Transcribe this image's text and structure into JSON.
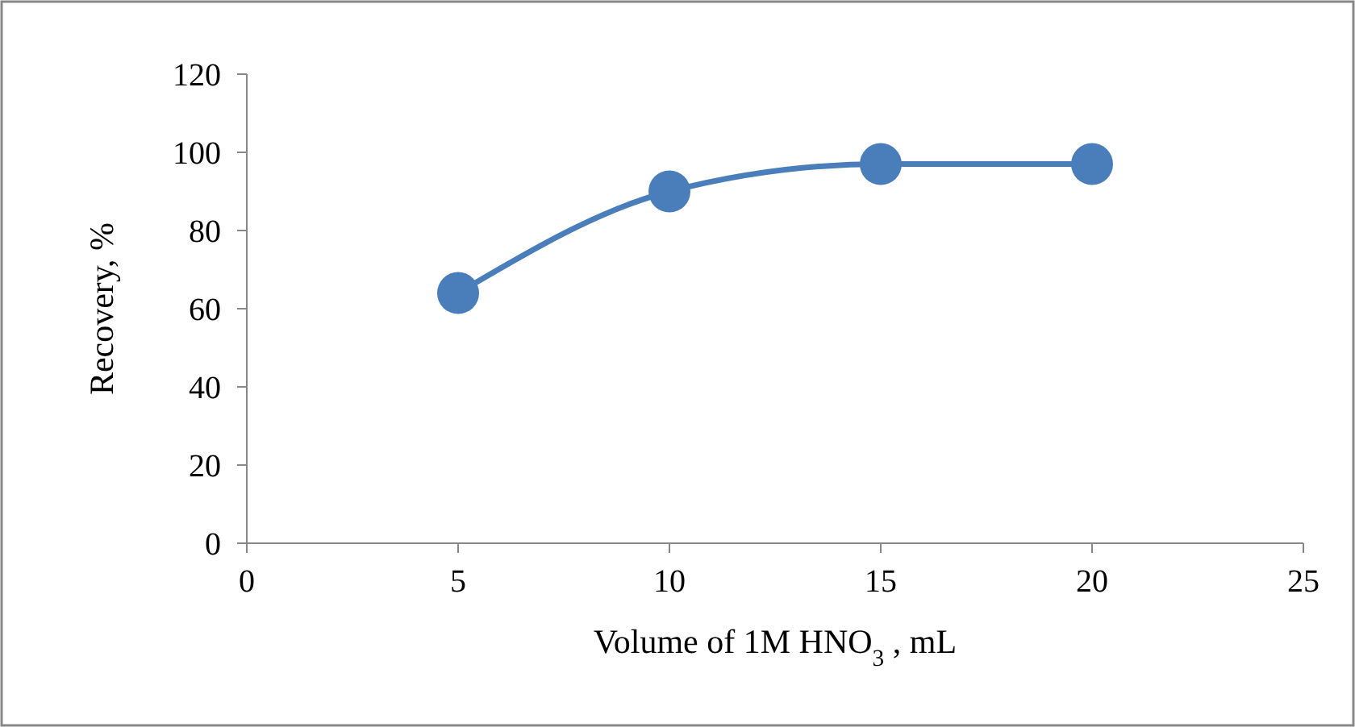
{
  "chart_data": {
    "type": "line",
    "xlabel": "Volume of 1M HNO$_{3}$ , mL",
    "ylabel": "Recovery, %",
    "x": [
      5,
      10,
      15,
      20
    ],
    "series": [
      {
        "color": "#4a7ebb",
        "values": [
          64,
          90,
          97,
          97
        ]
      }
    ],
    "xlim": [
      0,
      25
    ],
    "xticks": [
      0,
      5,
      10,
      15,
      20,
      25
    ],
    "ylim": [
      0,
      120
    ],
    "yticks": [
      0,
      20,
      40,
      60,
      80,
      100,
      120
    ],
    "grid": false,
    "marker": "circle",
    "line_style": "solid"
  }
}
